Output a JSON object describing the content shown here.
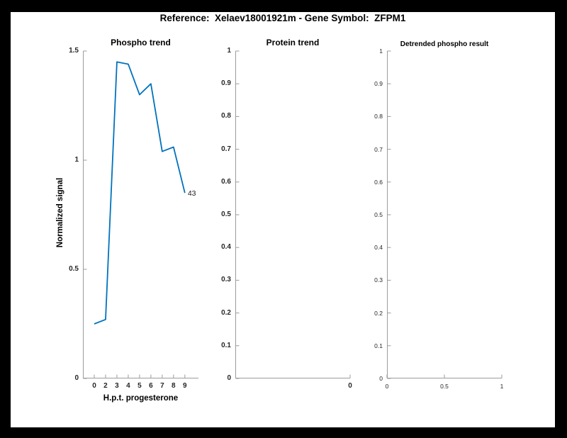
{
  "figure": {
    "title": "Reference:  Xelaev18001921m - Gene Symbol:  ZFPM1"
  },
  "colors": {
    "line_blue": "#0072BD",
    "axis": "#9b9b9b",
    "tick_label": "#262626",
    "figure_bg": "#ffffff",
    "surround_bg": "#000000"
  },
  "chart_data": [
    {
      "type": "line",
      "title": "Phospho trend",
      "xlabel": "H.p.t. progesterone",
      "ylabel": "Normalized signal",
      "x_positions": [
        1,
        2,
        3,
        4,
        5,
        6,
        7,
        8,
        9
      ],
      "x_tick_labels": [
        "0",
        "2",
        "3",
        "4",
        "5",
        "6",
        "7",
        "8",
        "9"
      ],
      "values": [
        0.25,
        0.27,
        1.45,
        1.44,
        1.3,
        1.35,
        1.04,
        1.06,
        0.85
      ],
      "xlim": [
        0,
        10.2
      ],
      "ylim": [
        0,
        1.5
      ],
      "grid": false,
      "x_ticks": [
        {
          "label": "0",
          "pos": 1
        },
        {
          "label": "2",
          "pos": 2
        },
        {
          "label": "3",
          "pos": 3
        },
        {
          "label": "4",
          "pos": 4
        },
        {
          "label": "5",
          "pos": 5
        },
        {
          "label": "6",
          "pos": 6
        },
        {
          "label": "7",
          "pos": 7
        },
        {
          "label": "8",
          "pos": 8
        },
        {
          "label": "9",
          "pos": 9
        }
      ],
      "y_ticks": [
        {
          "label": "0",
          "pos": 0
        },
        {
          "label": "0.5",
          "pos": 0.5
        },
        {
          "label": "1",
          "pos": 1
        },
        {
          "label": "1.5",
          "pos": 1.5
        }
      ],
      "end_annotation": "43",
      "line_color": "#0072BD"
    },
    {
      "type": "line",
      "title": "Protein trend",
      "xlabel": "",
      "ylabel": "",
      "x_positions": [],
      "values": [],
      "xlim": [
        0,
        1
      ],
      "ylim": [
        0,
        1
      ],
      "grid": false,
      "x_ticks": [
        {
          "label": "0",
          "pos": 1
        }
      ],
      "y_ticks": [
        {
          "label": "0",
          "pos": 0
        },
        {
          "label": "0.1",
          "pos": 0.1
        },
        {
          "label": "0.2",
          "pos": 0.2
        },
        {
          "label": "0.3",
          "pos": 0.3
        },
        {
          "label": "0.4",
          "pos": 0.4
        },
        {
          "label": "0.5",
          "pos": 0.5
        },
        {
          "label": "0.6",
          "pos": 0.6
        },
        {
          "label": "0.7",
          "pos": 0.7
        },
        {
          "label": "0.8",
          "pos": 0.8
        },
        {
          "label": "0.9",
          "pos": 0.9
        },
        {
          "label": "1",
          "pos": 1
        }
      ]
    },
    {
      "type": "line",
      "title": "Detrended phospho result",
      "xlabel": "",
      "ylabel": "",
      "x_positions": [],
      "values": [],
      "xlim": [
        0,
        1
      ],
      "ylim": [
        0,
        1
      ],
      "grid": false,
      "x_ticks": [
        {
          "label": "0",
          "pos": 0
        },
        {
          "label": "0.5",
          "pos": 0.5
        },
        {
          "label": "1",
          "pos": 1
        }
      ],
      "y_ticks": [
        {
          "label": "0",
          "pos": 0
        },
        {
          "label": "0.1",
          "pos": 0.1
        },
        {
          "label": "0.2",
          "pos": 0.2
        },
        {
          "label": "0.3",
          "pos": 0.3
        },
        {
          "label": "0.4",
          "pos": 0.4
        },
        {
          "label": "0.5",
          "pos": 0.5
        },
        {
          "label": "0.6",
          "pos": 0.6
        },
        {
          "label": "0.7",
          "pos": 0.7
        },
        {
          "label": "0.8",
          "pos": 0.8
        },
        {
          "label": "0.9",
          "pos": 0.9
        },
        {
          "label": "1",
          "pos": 1
        }
      ]
    }
  ]
}
